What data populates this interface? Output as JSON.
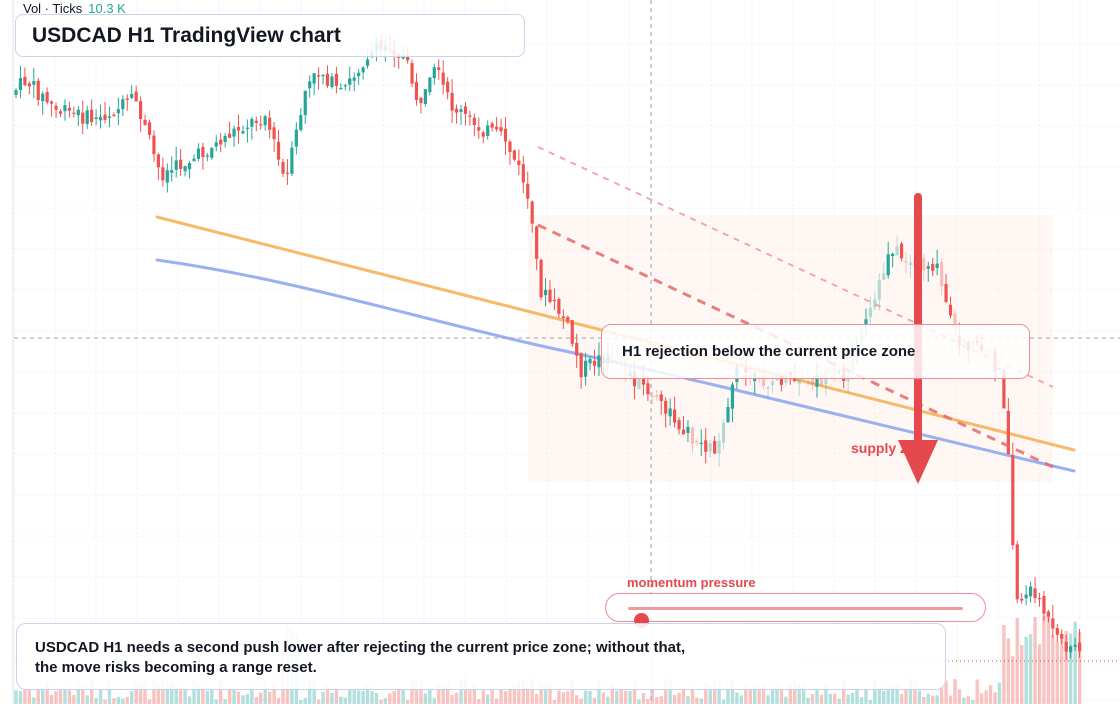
{
  "chart": {
    "symbol": "USDCAD",
    "timeframe": "H1",
    "platform": "TradingView",
    "volume_indicator": {
      "name": "Vol · Ticks",
      "value": "10.3 K"
    }
  },
  "title_card": {
    "text": "USDCAD H1 TradingView chart"
  },
  "annotations": {
    "rejection_card": "H1 rejection below the current price zone",
    "supply_label": "supply zone",
    "momentum_label": "momentum pressure",
    "momentum_level": 0.04,
    "summary_line1": "USDCAD H1 needs a second push lower after rejecting the current price zone; without that,",
    "summary_line2": "the move risks becoming a range reset."
  },
  "colors": {
    "bull": "#26a69a",
    "bear": "#ef5350",
    "accent_red": "#e5484d",
    "moving_average_fast": "#f5b35a",
    "moving_average_slow": "#8fa7ef",
    "annotation_border": "#ef8e96",
    "title_border": "#c9d4ec"
  },
  "icons": {
    "bearish_arrow": "arrow-down-icon"
  }
}
